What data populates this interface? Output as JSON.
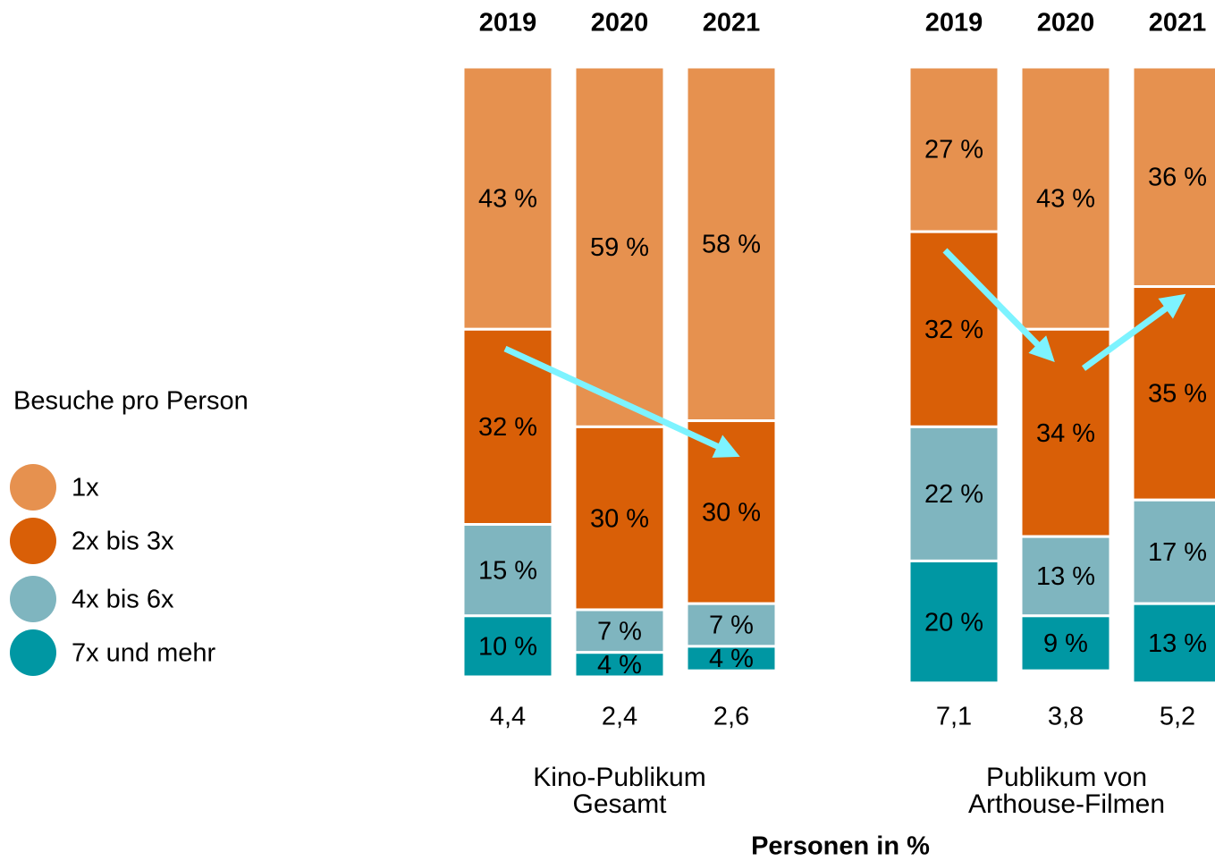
{
  "chart_data": {
    "type": "bar",
    "stacked": true,
    "legend_title": "Besuche pro Person",
    "xlabel": "Personen in %",
    "groups": [
      "Kino-Publikum Gesamt",
      "Publikum von Arthouse-Filmen"
    ],
    "categories": [
      "2019",
      "2020",
      "2021",
      "2019",
      "2020",
      "2021"
    ],
    "ylim": [
      0,
      100
    ],
    "series": [
      {
        "name": "1x",
        "color": "#e6914f",
        "label_color": "#000000",
        "values": [
          43,
          59,
          58,
          27,
          43,
          36
        ],
        "value_labels": [
          "43 %",
          "59 %",
          "58 %",
          "27 %",
          "43 %",
          "36 %"
        ]
      },
      {
        "name": "2x bis 3x",
        "color": "#d95f07",
        "label_color": "#ffffff",
        "values": [
          32,
          30,
          30,
          32,
          34,
          35
        ],
        "value_labels": [
          "32 %",
          "30 %",
          "30 %",
          "32 %",
          "34 %",
          "35 %"
        ]
      },
      {
        "name": "4x bis 6x",
        "color": "#7fb5bf",
        "label_color": "#000000",
        "values": [
          15,
          7,
          7,
          22,
          13,
          17
        ],
        "value_labels": [
          "15 %",
          "7 %",
          "7 %",
          "22 %",
          "13 %",
          "17 %"
        ]
      },
      {
        "name": "7x und mehr",
        "color": "#0097a3",
        "label_color": "#ffffff",
        "values": [
          10,
          4,
          4,
          20,
          9,
          13
        ],
        "value_labels": [
          "10 %",
          "4 %",
          "4 %",
          "20 %",
          "9 %",
          "13 %"
        ]
      }
    ],
    "averages": [
      {
        "value": 4.4,
        "label": "4,4"
      },
      {
        "value": 2.4,
        "label": "2,4"
      },
      {
        "value": 2.6,
        "label": "2,6"
      },
      {
        "value": 7.1,
        "label": "7,1"
      },
      {
        "value": 3.8,
        "label": "3,8"
      },
      {
        "value": 5.2,
        "label": "5,2"
      }
    ]
  }
}
